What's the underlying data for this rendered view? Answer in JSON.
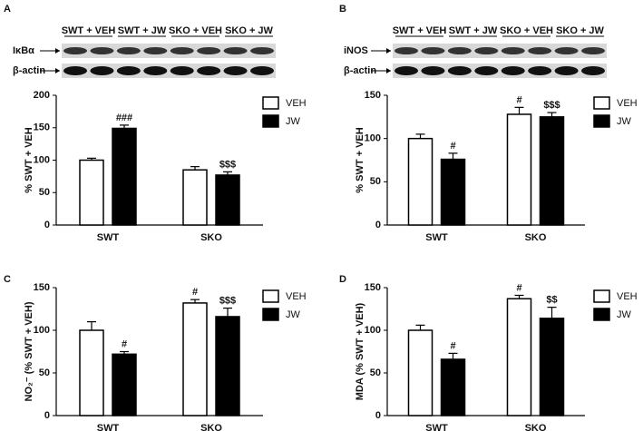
{
  "chart_data": [
    {
      "type": "bar",
      "panel": "A",
      "ylabel": "% SWT + VEH",
      "blot": {
        "lanes": [
          "SWT + VEH",
          "SWT + JW",
          "SKO + VEH",
          "SKO + JW"
        ],
        "proteins": [
          "IκBα",
          "β-actin"
        ]
      },
      "categories": [
        "SWT",
        "SKO"
      ],
      "ylim": [
        0,
        200
      ],
      "yticks": [
        0,
        50,
        100,
        150,
        200
      ],
      "series": [
        {
          "name": "VEH",
          "color": "#ffffff",
          "values": [
            100,
            85
          ],
          "errors": [
            3,
            5
          ],
          "significance": [
            null,
            null
          ]
        },
        {
          "name": "JW",
          "color": "#000000",
          "values": [
            149,
            77
          ],
          "errors": [
            5,
            5
          ],
          "significance": [
            "###",
            "$$$"
          ]
        }
      ]
    },
    {
      "type": "bar",
      "panel": "B",
      "ylabel": "% SWT + VEH",
      "blot": {
        "lanes": [
          "SWT + VEH",
          "SWT + JW",
          "SKO + VEH",
          "SKO + JW"
        ],
        "proteins": [
          "iNOS",
          "β-actin"
        ]
      },
      "categories": [
        "SWT",
        "SKO"
      ],
      "ylim": [
        0,
        150
      ],
      "yticks": [
        0,
        50,
        100,
        150
      ],
      "series": [
        {
          "name": "VEH",
          "color": "#ffffff",
          "values": [
            100,
            128
          ],
          "errors": [
            5,
            8
          ],
          "significance": [
            null,
            "#"
          ]
        },
        {
          "name": "JW",
          "color": "#000000",
          "values": [
            76,
            125
          ],
          "errors": [
            7,
            5
          ],
          "significance": [
            "#",
            "$$$"
          ]
        }
      ]
    },
    {
      "type": "bar",
      "panel": "C",
      "ylabel": "NO₂⁻ (% SWT + VEH)",
      "categories": [
        "SWT",
        "SKO"
      ],
      "ylim": [
        0,
        150
      ],
      "yticks": [
        0,
        50,
        100,
        150
      ],
      "series": [
        {
          "name": "VEH",
          "color": "#ffffff",
          "values": [
            100,
            132
          ],
          "errors": [
            10,
            4
          ],
          "significance": [
            null,
            "#"
          ]
        },
        {
          "name": "JW",
          "color": "#000000",
          "values": [
            72,
            116
          ],
          "errors": [
            3,
            10
          ],
          "significance": [
            "#",
            "$$$"
          ]
        }
      ]
    },
    {
      "type": "bar",
      "panel": "D",
      "ylabel": "MDA (% SWT + VEH)",
      "categories": [
        "SWT",
        "SKO"
      ],
      "ylim": [
        0,
        150
      ],
      "yticks": [
        0,
        50,
        100,
        150
      ],
      "series": [
        {
          "name": "VEH",
          "color": "#ffffff",
          "values": [
            100,
            137
          ],
          "errors": [
            6,
            4
          ],
          "significance": [
            null,
            "#"
          ]
        },
        {
          "name": "JW",
          "color": "#000000",
          "values": [
            66,
            114
          ],
          "errors": [
            7,
            13
          ],
          "significance": [
            "#",
            "$$"
          ]
        }
      ]
    }
  ]
}
